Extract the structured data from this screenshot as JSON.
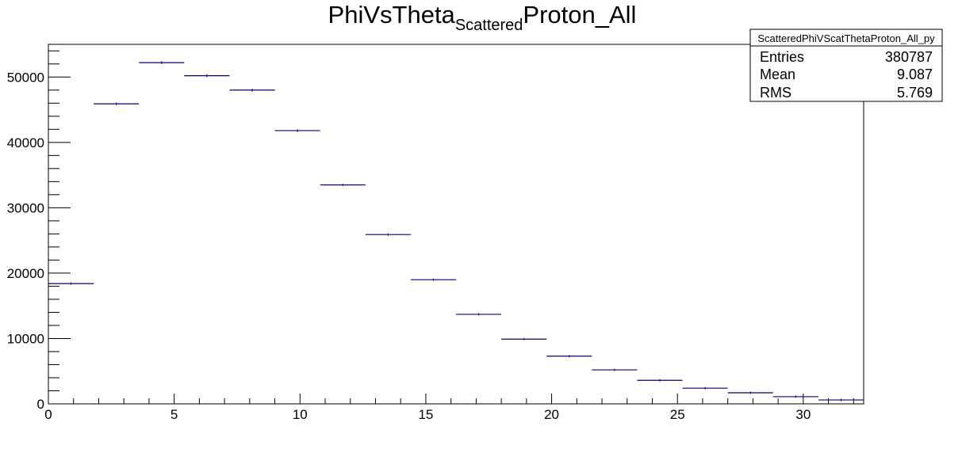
{
  "chart_data": {
    "type": "histogram",
    "title": {
      "prefix": "PhiVsTheta",
      "subscript": "Scattered",
      "suffix": "Proton_All"
    },
    "xlabel": "",
    "ylabel": "",
    "xlim": [
      0,
      32.4
    ],
    "ylim": [
      0,
      55000
    ],
    "bin_width": 1.8,
    "bin_edges": [
      0,
      1.8,
      3.6,
      5.4,
      7.2,
      9.0,
      10.8,
      12.6,
      14.4,
      16.2,
      18.0,
      19.8,
      21.6,
      23.4,
      25.2,
      27.0,
      28.8,
      30.6,
      32.4
    ],
    "values": [
      18400,
      45900,
      52200,
      50200,
      48000,
      41800,
      33500,
      25900,
      19000,
      13700,
      9900,
      7300,
      5200,
      3600,
      2400,
      1700,
      1100,
      600
    ],
    "x_ticks": [
      0,
      5,
      10,
      15,
      20,
      25,
      30
    ],
    "x_tick_labels": [
      "0",
      "5",
      "10",
      "15",
      "20",
      "25",
      "30"
    ],
    "y_ticks": [
      0,
      10000,
      20000,
      30000,
      40000,
      50000
    ],
    "y_tick_labels": [
      "0",
      "10000",
      "20000",
      "30000",
      "40000",
      "50000"
    ],
    "line_color": "#000080",
    "grid": false,
    "legend": "none",
    "stats_box": {
      "placement": "top-right",
      "name": "ScatteredPhiVScatThetaProton_All_py",
      "rows": [
        {
          "label": "Entries",
          "value": "380787"
        },
        {
          "label": "Mean",
          "value": "9.087"
        },
        {
          "label": "RMS",
          "value": "5.769"
        }
      ]
    }
  }
}
